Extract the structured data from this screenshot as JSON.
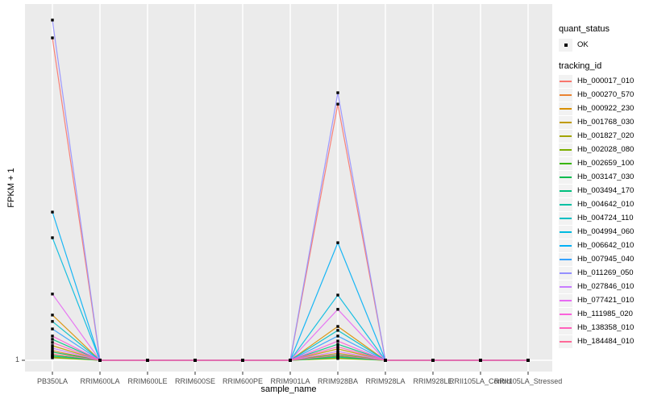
{
  "figure": {
    "background": "#FFFFFF",
    "panel_background": "#EBEBEB",
    "grid_color": "#FFFFFF",
    "tick_color": "#333333",
    "axis_text_color": "#4D4D4D",
    "marker_color": "#000000",
    "legend_key_background": "#F2F2F2"
  },
  "axes": {
    "x_title": "sample_name",
    "y_title": "FPKM + 1",
    "y_tick_labels": [
      "1"
    ]
  },
  "legend": {
    "quant_title": "quant_status",
    "quant_items": [
      {
        "label": "OK"
      }
    ],
    "tracking_title": "tracking_id",
    "position": "right"
  },
  "chart_data": {
    "type": "line",
    "title": "",
    "xlabel": "sample_name",
    "ylabel": "FPKM + 1",
    "y_scale": "log",
    "y_tick_labels": [
      "1"
    ],
    "y_axis_note": "only the y=1 baseline tick is labeled; series values are estimated plot heights above the y=1 baseline as a fraction of full panel height",
    "grid": "major-only",
    "legend_position": "right",
    "categories": [
      "PB350LA",
      "RRIM600LA",
      "RRIM600LE",
      "RRIM600SE",
      "RRIM600PE",
      "RRIM901LA",
      "RRIM928BA",
      "RRIM928LA",
      "RRIM928LE",
      "RRII105LA_Control",
      "RRII105LA_Stressed"
    ],
    "quant_status": "OK",
    "series": [
      {
        "name": "Hb_000017_010",
        "color": "#F8766D",
        "values": [
          0.905,
          0,
          0,
          0,
          0,
          0,
          0.719,
          0,
          0,
          0,
          0
        ]
      },
      {
        "name": "Hb_000270_570",
        "color": "#EA8331",
        "values": [
          0.027,
          0,
          0,
          0,
          0,
          0,
          0.02,
          0,
          0,
          0,
          0
        ]
      },
      {
        "name": "Hb_000922_230",
        "color": "#D89000",
        "values": [
          0.127,
          0,
          0,
          0,
          0,
          0,
          0.095,
          0,
          0,
          0,
          0
        ]
      },
      {
        "name": "Hb_001768_030",
        "color": "#C09B00",
        "values": [
          0.041,
          0,
          0,
          0,
          0,
          0,
          0.032,
          0,
          0,
          0,
          0
        ]
      },
      {
        "name": "Hb_001827_020",
        "color": "#A3A500",
        "values": [
          0.009,
          0,
          0,
          0,
          0,
          0,
          0.007,
          0,
          0,
          0,
          0
        ]
      },
      {
        "name": "Hb_002028_080",
        "color": "#7CAE00",
        "values": [
          0.007,
          0,
          0,
          0,
          0,
          0,
          0.005,
          0,
          0,
          0,
          0
        ]
      },
      {
        "name": "Hb_002659_100",
        "color": "#39B600",
        "values": [
          0.014,
          0,
          0,
          0,
          0,
          0,
          0.011,
          0,
          0,
          0,
          0
        ]
      },
      {
        "name": "Hb_003147_030",
        "color": "#00BB4E",
        "values": [
          0.023,
          0,
          0,
          0,
          0,
          0,
          0.016,
          0,
          0,
          0,
          0
        ]
      },
      {
        "name": "Hb_003494_170",
        "color": "#00BF7D",
        "values": [
          0.059,
          0,
          0,
          0,
          0,
          0,
          0.045,
          0,
          0,
          0,
          0
        ]
      },
      {
        "name": "Hb_004642_010",
        "color": "#00C1A3",
        "values": [
          0.012,
          0,
          0,
          0,
          0,
          0,
          0.009,
          0,
          0,
          0,
          0
        ]
      },
      {
        "name": "Hb_004724_110",
        "color": "#00BFC4",
        "values": [
          0.109,
          0,
          0,
          0,
          0,
          0,
          0.084,
          0,
          0,
          0,
          0
        ]
      },
      {
        "name": "Hb_004994_060",
        "color": "#00BAE0",
        "values": [
          0.344,
          0,
          0,
          0,
          0,
          0,
          0.183,
          0,
          0,
          0,
          0
        ]
      },
      {
        "name": "Hb_006642_010",
        "color": "#00B0F6",
        "values": [
          0.416,
          0,
          0,
          0,
          0,
          0,
          0.33,
          0,
          0,
          0,
          0
        ]
      },
      {
        "name": "Hb_007945_040",
        "color": "#35A2FF",
        "values": [
          0.088,
          0,
          0,
          0,
          0,
          0,
          0.068,
          0,
          0,
          0,
          0
        ]
      },
      {
        "name": "Hb_011269_050",
        "color": "#9590FF",
        "values": [
          0.955,
          0,
          0,
          0,
          0,
          0,
          0.751,
          0,
          0,
          0,
          0
        ]
      },
      {
        "name": "Hb_027846_010",
        "color": "#C77CFF",
        "values": [
          0.034,
          0,
          0,
          0,
          0,
          0,
          0.025,
          0,
          0,
          0,
          0
        ]
      },
      {
        "name": "Hb_077421_010",
        "color": "#E76BF3",
        "values": [
          0.186,
          0,
          0,
          0,
          0,
          0,
          0.143,
          0,
          0,
          0,
          0
        ]
      },
      {
        "name": "Hb_111985_020",
        "color": "#FA62DB",
        "values": [
          0.068,
          0,
          0,
          0,
          0,
          0,
          0.054,
          0,
          0,
          0,
          0
        ]
      },
      {
        "name": "Hb_138358_010",
        "color": "#FF62BC",
        "values": [
          0.05,
          0,
          0,
          0,
          0,
          0,
          0.038,
          0,
          0,
          0,
          0
        ]
      },
      {
        "name": "Hb_184484_010",
        "color": "#FF6A98",
        "values": [
          0.018,
          0,
          0,
          0,
          0,
          0,
          0.014,
          0,
          0,
          0,
          0
        ]
      }
    ]
  }
}
